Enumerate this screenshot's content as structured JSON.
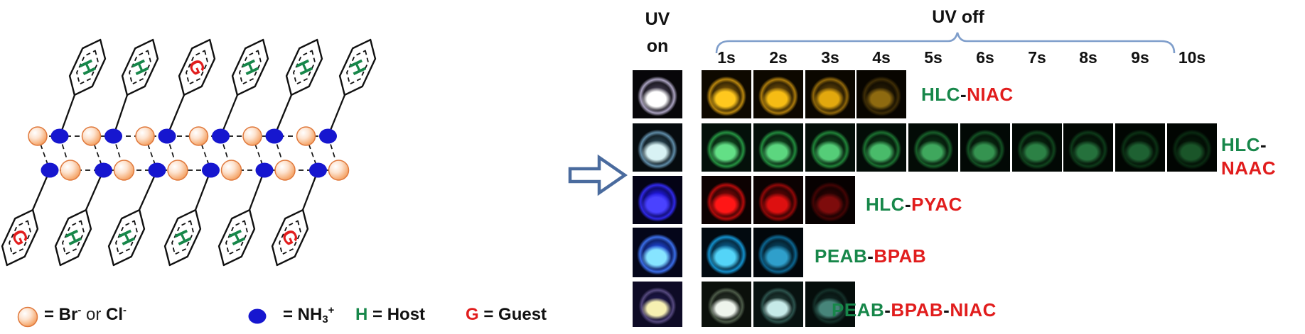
{
  "schematic": {
    "top_ring_letters": [
      "H",
      "H",
      "G",
      "H",
      "H",
      "H"
    ],
    "bottom_ring_letters": [
      "G",
      "H",
      "H",
      "H",
      "H",
      "G"
    ],
    "colors": {
      "host": "#17874a",
      "guest": "#e11d1d",
      "anion_fill": "#f6ac74",
      "anion_stroke": "#e0793c",
      "cation": "#1616cf",
      "bond": "#111111"
    },
    "legend": [
      {
        "symbol": "anion-sphere",
        "parts": [
          {
            "t": "= Br"
          },
          {
            "t": "-",
            "sup": true
          },
          {
            "t": " or ",
            "light": true
          },
          {
            "t": "Cl"
          },
          {
            "t": "-",
            "sup": true
          }
        ]
      },
      {
        "symbol": "cation-dot",
        "parts": [
          {
            "t": "= NH"
          },
          {
            "t": "3",
            "sub": true
          },
          {
            "t": "+",
            "sup": true
          }
        ]
      },
      {
        "symbol": "none",
        "parts": [
          {
            "t": "H",
            "color": "#17874a"
          },
          {
            "t": " = Host"
          }
        ]
      },
      {
        "symbol": "none",
        "parts": [
          {
            "t": "G",
            "color": "#e11d1d"
          },
          {
            "t": " = Guest"
          }
        ]
      }
    ]
  },
  "panel": {
    "uv_on_lines": [
      "UV",
      "on"
    ],
    "uv_off": "UV off",
    "bracket_color": "#7f9ecb",
    "times": [
      "1s",
      "2s",
      "3s",
      "4s",
      "5s",
      "6s",
      "7s",
      "8s",
      "9s",
      "10s"
    ],
    "rows": [
      {
        "name": "HLC-NIAC",
        "label_lines": [
          [
            {
              "t": "HLC",
              "color": "#17874a"
            },
            {
              "t": "-",
              "color": "#111111"
            },
            {
              "t": "NIAC",
              "color": "#e11d1d"
            }
          ]
        ],
        "cells": [
          {
            "state": "UV on",
            "core": "#ffffff",
            "mid": "#3c3648",
            "ring": "#aaa2c0",
            "bg": "#070609"
          },
          {
            "state": "1s",
            "core": "#ffc81e",
            "mid": "#6e4e08",
            "ring": "#b8860e",
            "bg": "#0e0900"
          },
          {
            "state": "2s",
            "core": "#f6bc14",
            "mid": "#66480a",
            "ring": "#aa7a0c",
            "bg": "#0d0800"
          },
          {
            "state": "3s",
            "core": "#e2a80e",
            "mid": "#553c08",
            "ring": "#8e660a",
            "bg": "#0b0700"
          },
          {
            "state": "4s",
            "core": "#8e6a10",
            "mid": "#241a04",
            "ring": "#3e2d06",
            "bg": "#080500"
          }
        ]
      },
      {
        "name": "HLC-NAAC",
        "label_lines": [
          [
            {
              "t": "HLC",
              "color": "#17874a"
            },
            {
              "t": "-",
              "color": "#111111"
            }
          ],
          [
            {
              "t": "NAAC",
              "color": "#e11d1d"
            }
          ]
        ],
        "cells": [
          {
            "state": "UV on",
            "core": "#d8f2f4",
            "mid": "#27424e",
            "ring": "#5f8ba6",
            "bg": "#060b0e"
          },
          {
            "state": "1s",
            "core": "#63df86",
            "mid": "#10481f",
            "ring": "#259241",
            "bg": "#04100a"
          },
          {
            "state": "2s",
            "core": "#5cd67f",
            "mid": "#0f431d",
            "ring": "#228a3d",
            "bg": "#040f09"
          },
          {
            "state": "3s",
            "core": "#55cd78",
            "mid": "#0e3f1b",
            "ring": "#208238",
            "bg": "#040e08"
          },
          {
            "state": "4s",
            "core": "#49bb6a",
            "mid": "#0c3717",
            "ring": "#1b7030",
            "bg": "#030c07"
          },
          {
            "state": "5s",
            "core": "#3fa75d",
            "mid": "#0a3014",
            "ring": "#175f29",
            "bg": "#030b06"
          },
          {
            "state": "6s",
            "core": "#359350",
            "mid": "#092a11",
            "ring": "#135023",
            "bg": "#020905"
          },
          {
            "state": "7s",
            "core": "#2c8145",
            "mid": "#07240e",
            "ring": "#10441d",
            "bg": "#020804"
          },
          {
            "state": "8s",
            "core": "#25713c",
            "mid": "#061f0c",
            "ring": "#0d3a19",
            "bg": "#020703"
          },
          {
            "state": "9s",
            "core": "#1e6132",
            "mid": "#051a0a",
            "ring": "#0b3114",
            "bg": "#010602"
          },
          {
            "state": "10s",
            "core": "#1a5529",
            "mid": "#041708",
            "ring": "#092a11",
            "bg": "#010502"
          }
        ]
      },
      {
        "name": "HLC-PYAC",
        "label_lines": [
          [
            {
              "t": "HLC",
              "color": "#17874a"
            },
            {
              "t": "-",
              "color": "#111111"
            },
            {
              "t": "PYAC",
              "color": "#e11d1d"
            }
          ]
        ],
        "cells": [
          {
            "state": "UV on",
            "core": "#4a42ff",
            "mid": "#2018e0",
            "ring": "#2f28e8",
            "bg": "#040316"
          },
          {
            "state": "1s",
            "core": "#ff1616",
            "mid": "#750707",
            "ring": "#b30b0b",
            "bg": "#0d0202"
          },
          {
            "state": "2s",
            "core": "#dd1010",
            "mid": "#5c0505",
            "ring": "#8e0808",
            "bg": "#0b0202"
          },
          {
            "state": "3s",
            "core": "#7e0c0c",
            "mid": "#2a0303",
            "ring": "#420404",
            "bg": "#070101"
          }
        ]
      },
      {
        "name": "PEAB-BPAB",
        "label_lines": [
          [
            {
              "t": "PEAB",
              "color": "#17874a"
            },
            {
              "t": "-",
              "color": "#111111"
            },
            {
              "t": "BPAB",
              "color": "#e11d1d"
            }
          ]
        ],
        "cells": [
          {
            "state": "UV on",
            "core": "#86e4ff",
            "mid": "#1c43cf",
            "ring": "#3a6ee8",
            "bg": "#04061a"
          },
          {
            "state": "1s",
            "core": "#54d4f8",
            "mid": "#0a5a86",
            "ring": "#1390cc",
            "bg": "#020a10"
          },
          {
            "state": "2s",
            "core": "#2f9fcb",
            "mid": "#07435f",
            "ring": "#0c6590",
            "bg": "#02070b"
          }
        ]
      },
      {
        "name": "PEAB-BPAB-NIAC",
        "label_lines": [
          [
            {
              "t": "PEAB",
              "color": "#17874a"
            },
            {
              "t": "-",
              "color": "#111111"
            },
            {
              "t": "BPAB",
              "color": "#e11d1d"
            },
            {
              "t": "-",
              "color": "#111111"
            },
            {
              "t": "NIAC",
              "color": "#e11d1d"
            }
          ]
        ],
        "cells": [
          {
            "state": "UV on",
            "core": "#f6f0b2",
            "mid": "#1c1648",
            "ring": "#55497e",
            "bg": "#0e0b26"
          },
          {
            "state": "1s",
            "core": "#eef4ec",
            "mid": "#272f27",
            "ring": "#4c5a48",
            "bg": "#0b100b"
          },
          {
            "state": "2s",
            "core": "#c6eae8",
            "mid": "#1e3834",
            "ring": "#2c524c",
            "bg": "#081210"
          },
          {
            "state": "3s",
            "core": "#47857a",
            "mid": "#0e231f",
            "ring": "#143029",
            "bg": "#050d0b"
          }
        ]
      }
    ]
  }
}
